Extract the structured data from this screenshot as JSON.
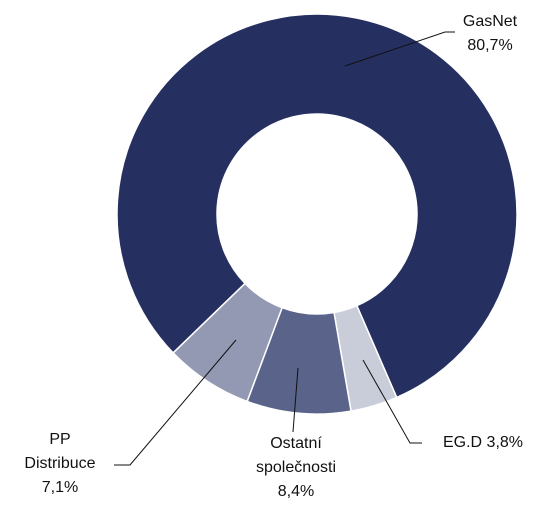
{
  "chart_data": {
    "type": "donut",
    "categories": [
      "GasNet",
      "EG.D",
      "Ostatní společnosti",
      "PP Distribuce"
    ],
    "values": [
      80.7,
      3.8,
      8.4,
      7.1
    ],
    "value_labels": [
      "80,7%",
      "3,8%",
      "8,4%",
      "7,1%"
    ],
    "colors": [
      "#253061",
      "#c9cdd9",
      "#5a6389",
      "#9398b3"
    ]
  }
}
